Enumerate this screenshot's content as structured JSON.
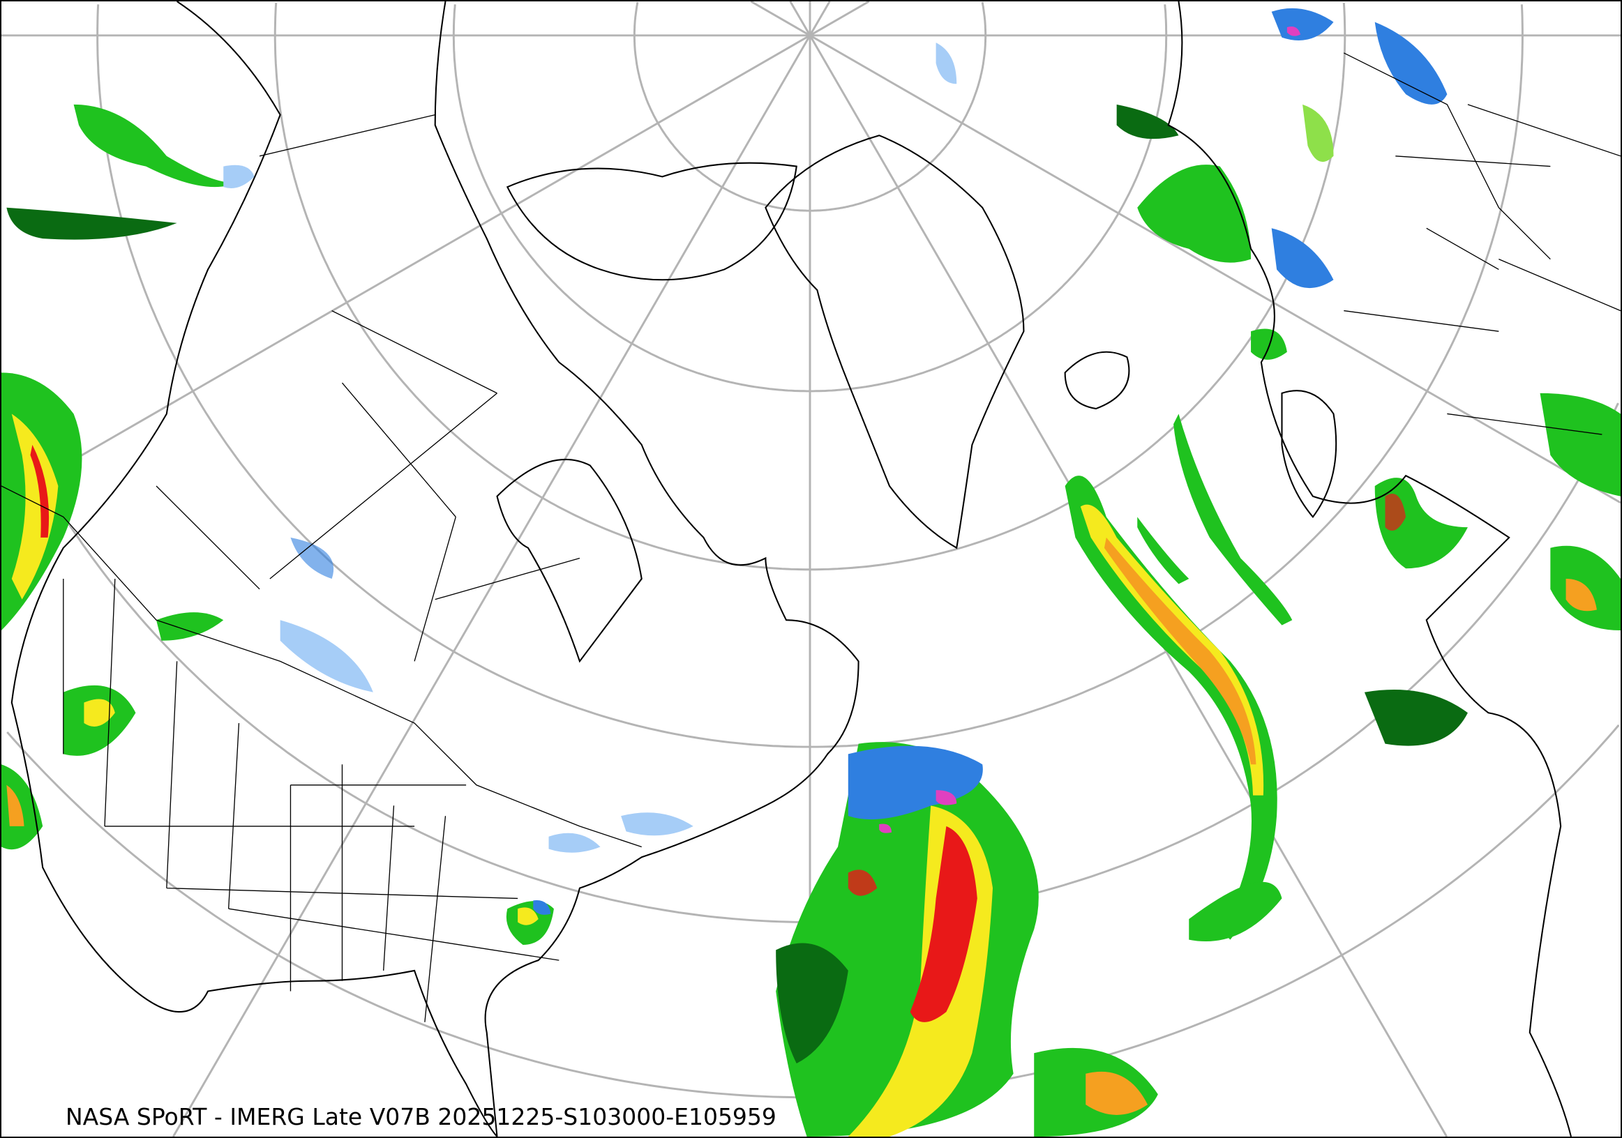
{
  "caption": "NASA SPoRT - IMERG Late V07B 20251225-S103000-E105959",
  "colors": {
    "graticule": "#b4b4b4",
    "light_precip_blue": "#a6cdf7",
    "blue": "#2f7fe0",
    "dark_green": "#0a6b12",
    "green": "#1fc21f",
    "light_green": "#8ee04a",
    "yellow": "#f5ea1e",
    "orange": "#f5a020",
    "red": "#e81818",
    "magenta": "#e040c0"
  },
  "projection": "north-polar-stereographic"
}
